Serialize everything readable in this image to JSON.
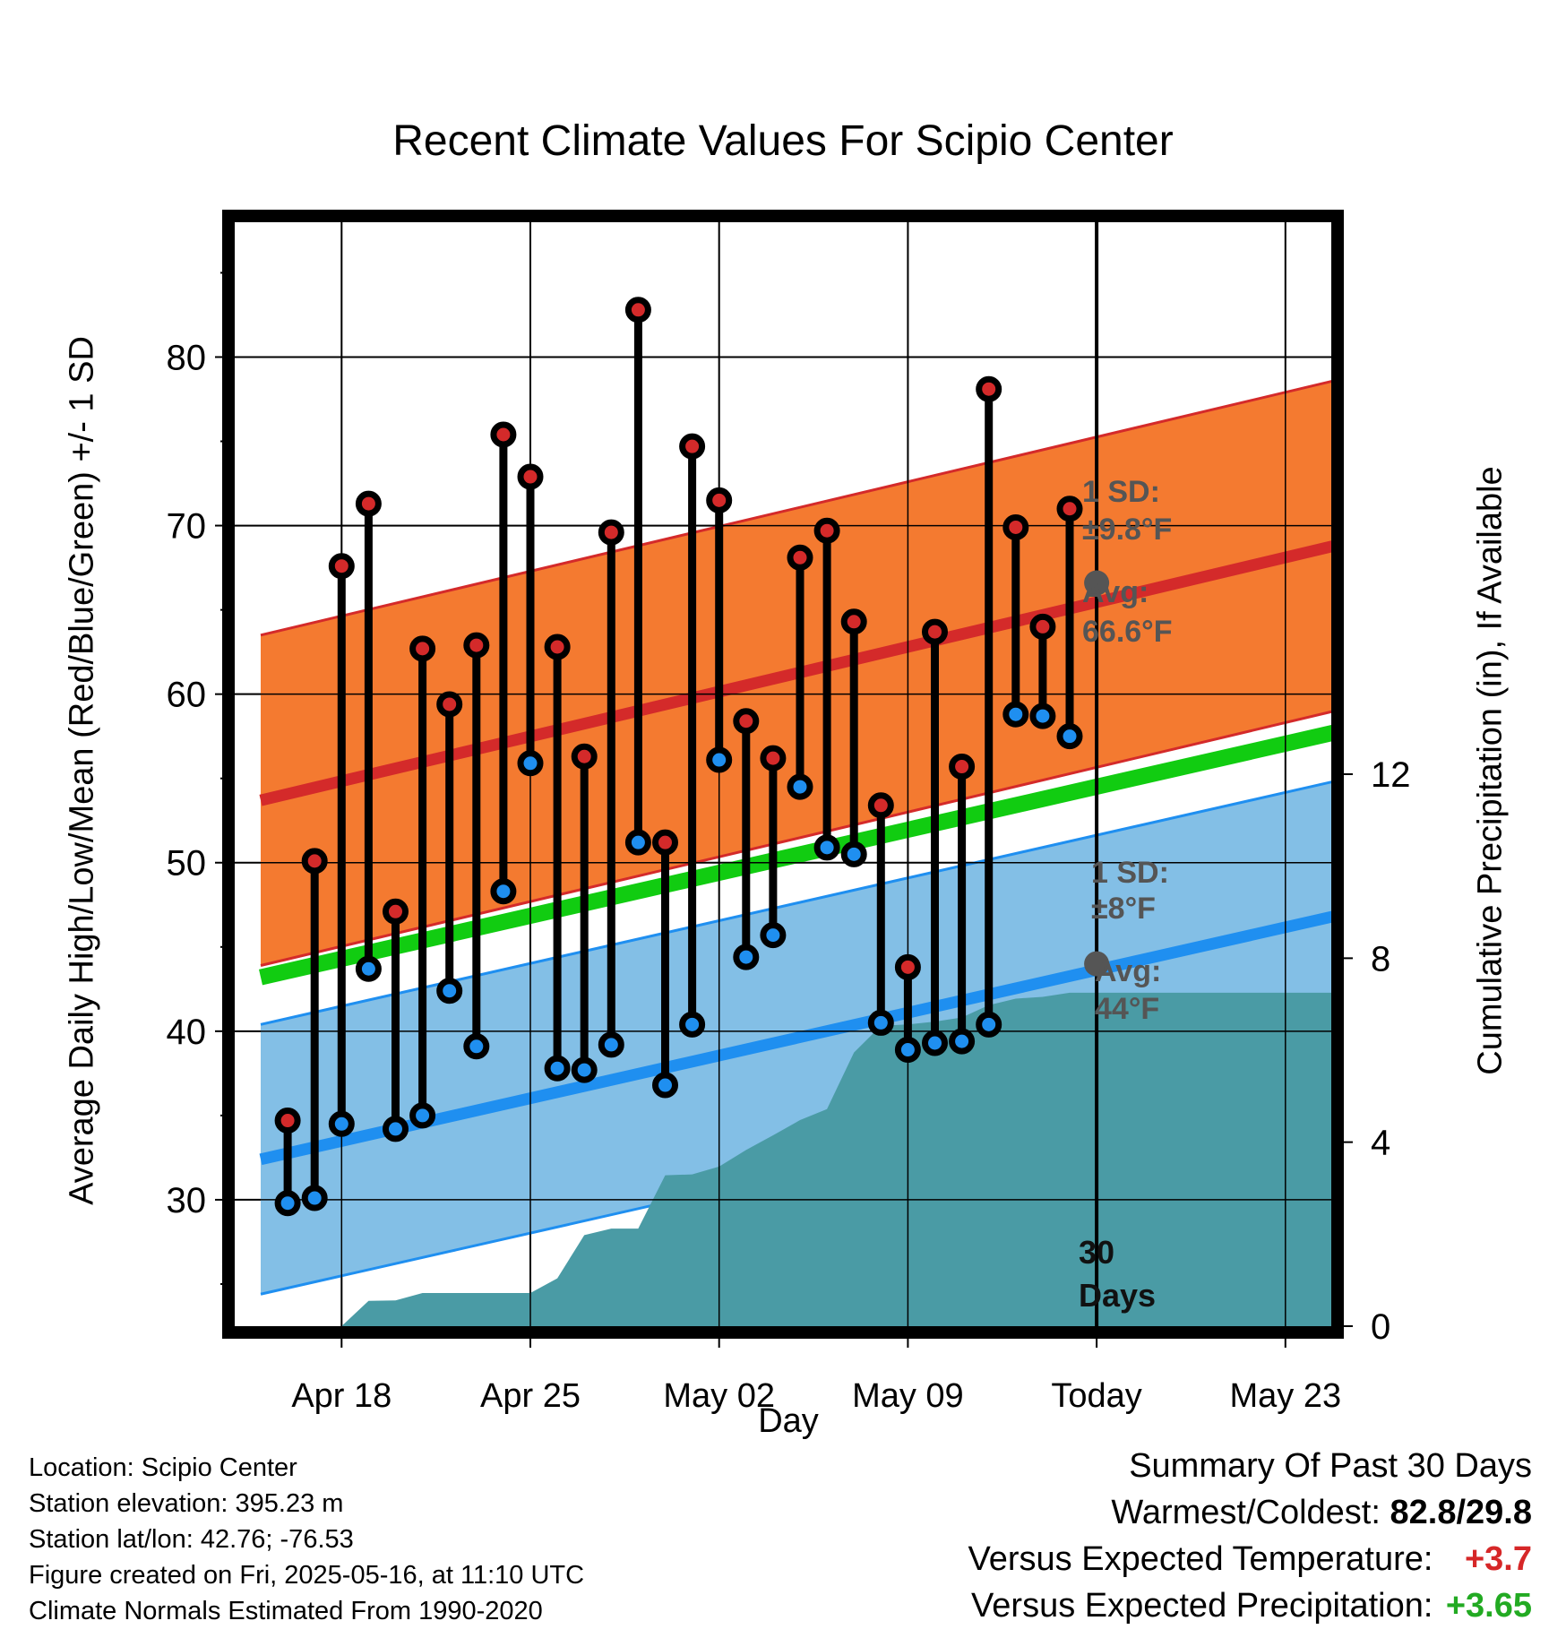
{
  "title": "Recent Climate Values For Scipio Center",
  "chart_data": {
    "type": "line",
    "title": "Recent Climate Values For Scipio Center",
    "xlabel": "Day",
    "ylabel": "Average Daily High/Low/Mean (Red/Blue/Green) +/- 1 SD",
    "y2label": "Cumulative Precipitation (in), If Available",
    "ylim": [
      22.5,
      88
    ],
    "y2lim": [
      0,
      24
    ],
    "y_ticks": [
      30,
      40,
      50,
      60,
      70,
      80
    ],
    "y2_ticks": [
      0,
      4,
      8,
      12
    ],
    "x_tick_labels": [
      "Apr 18",
      "Apr 25",
      "May 02",
      "May 09",
      "Today",
      "May 23"
    ],
    "x_tick_days": [
      3,
      10,
      17,
      24,
      31,
      38
    ],
    "xlim": [
      0,
      41.4
    ],
    "grid": true,
    "today_day": 31,
    "today_label": "30 Days",
    "highs": [
      34.7,
      50.1,
      67.6,
      71.3,
      47.1,
      62.7,
      59.4,
      62.9,
      75.4,
      72.9,
      62.8,
      56.3,
      69.6,
      82.8,
      51.2,
      74.7,
      71.5,
      58.4,
      56.2,
      68.1,
      69.7,
      64.3,
      53.4,
      43.8,
      63.7,
      55.7,
      78.1,
      69.9,
      64.0,
      71.0
    ],
    "lows": [
      29.8,
      30.1,
      34.5,
      43.7,
      34.2,
      35.0,
      42.4,
      39.1,
      48.3,
      55.9,
      37.8,
      37.7,
      39.2,
      51.2,
      36.8,
      40.4,
      56.1,
      44.4,
      45.7,
      54.5,
      50.9,
      50.5,
      40.5,
      38.9,
      39.3,
      39.4,
      40.4,
      58.8,
      58.7,
      57.5
    ],
    "normals": {
      "days": [
        0,
        41.4
      ],
      "avg_high": [
        53.7,
        69.4
      ],
      "high_sd": 9.8,
      "avg_low": [
        32.4,
        47.4
      ],
      "low_sd": 8,
      "avg_mean": [
        43.2,
        58.3
      ],
      "today_avg_high": 66.6,
      "today_avg_low": 44
    },
    "precip_cumulative": {
      "days": [
        3,
        4,
        5,
        6,
        7,
        8,
        9,
        10,
        11,
        12,
        13,
        14,
        15,
        16,
        17,
        18,
        19,
        20,
        21,
        22,
        23,
        24,
        25,
        26,
        27,
        28,
        29,
        30,
        31,
        41.4
      ],
      "values": [
        0.0,
        0.55,
        0.56,
        0.72,
        0.72,
        0.72,
        0.72,
        0.72,
        1.04,
        1.98,
        2.12,
        2.12,
        3.28,
        3.3,
        3.47,
        3.83,
        4.15,
        4.48,
        4.72,
        5.95,
        6.53,
        6.56,
        6.62,
        6.71,
        6.98,
        7.12,
        7.16,
        7.25,
        7.25,
        7.25
      ]
    },
    "colors": {
      "high_band": "#f47a30",
      "high_line": "#d42a2a",
      "low_band": "#83bfe6",
      "low_line": "#1f8ff0",
      "mean_line": "#11cc11",
      "precip": "#4a9ba5",
      "high_marker": "#d42a2a",
      "low_marker": "#1f8ff0"
    }
  },
  "annotations": {
    "high_sd_label": "1 SD:",
    "high_sd_value": "±9.8°F",
    "high_avg_label": "Avg:",
    "high_avg_value": "66.6°F",
    "low_sd_label": "1 SD:",
    "low_sd_value": "±8°F",
    "low_avg_label": "Avg:",
    "low_avg_value": "44°F",
    "days_line1": "30",
    "days_line2": "Days"
  },
  "footer": {
    "location": "Location: Scipio Center",
    "elevation": "Station elevation: 395.23 m",
    "latlon": "Station lat/lon: 42.76; -76.53",
    "created": "Figure created on Fri, 2025-05-16, at 11:10 UTC",
    "normals": "Climate Normals Estimated From 1990-2020"
  },
  "summary": {
    "heading": "Summary Of Past 30 Days",
    "warmest_coldest_label": "Warmest/Coldest:",
    "warmest": "82.8",
    "separator": "/",
    "coldest": "29.8",
    "temp_label": "Versus Expected Temperature:",
    "temp_value": "+3.7",
    "precip_label": "Versus Expected Precipitation:",
    "precip_value": "+3.65"
  }
}
